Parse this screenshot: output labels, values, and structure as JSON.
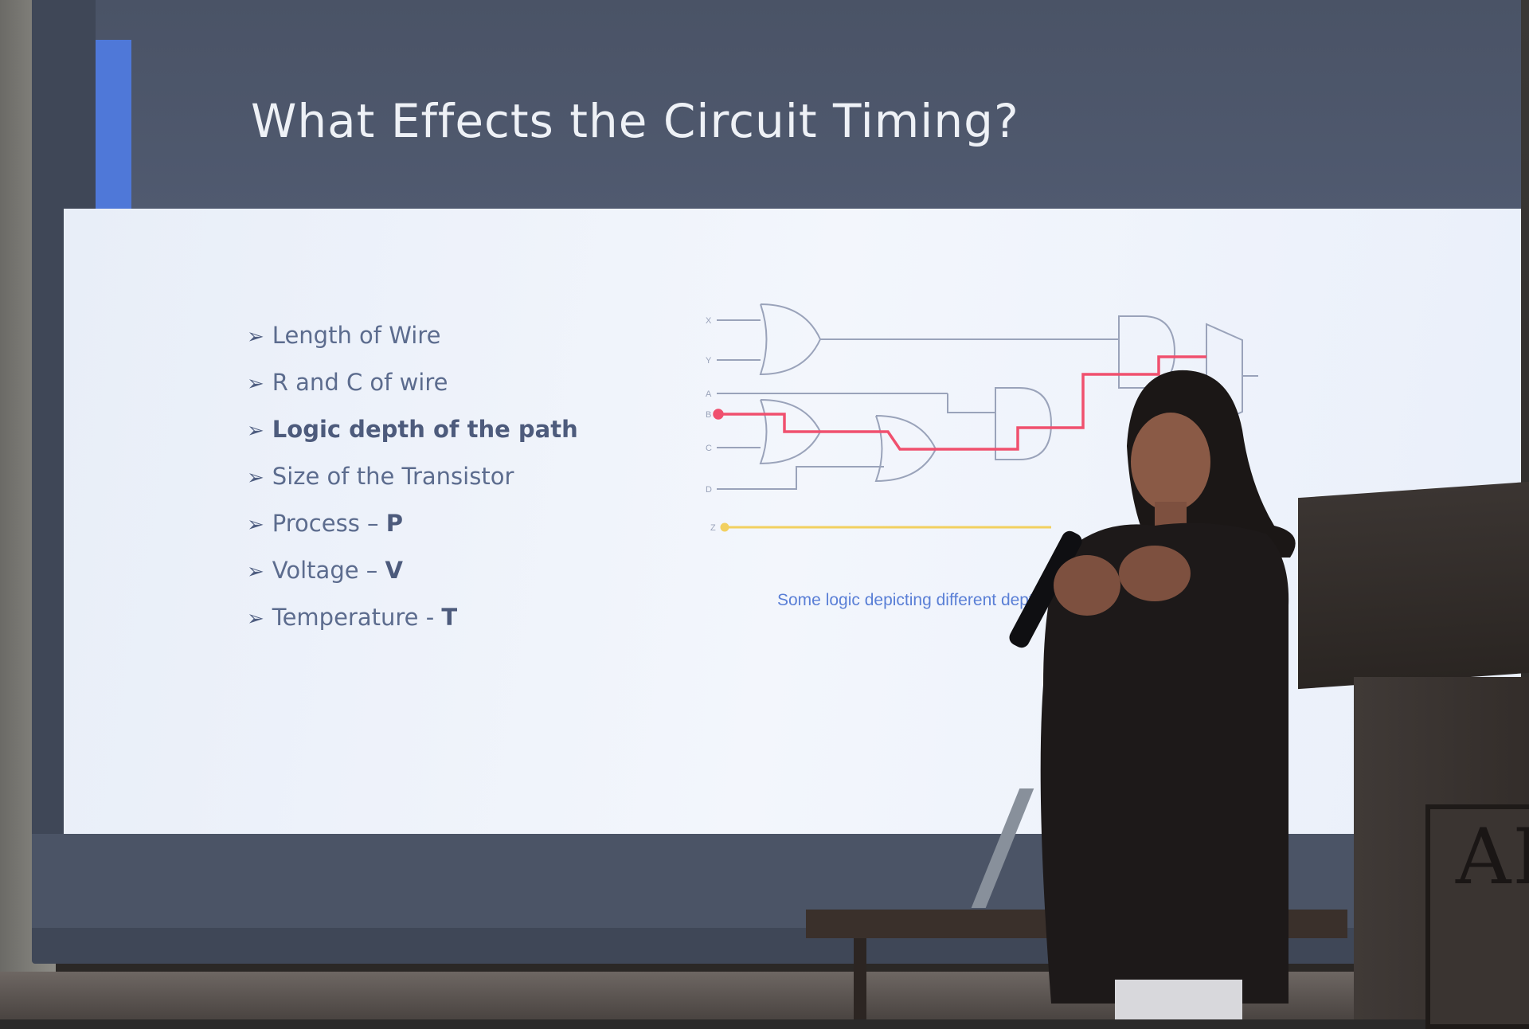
{
  "slide": {
    "title": "What Effects the Circuit Timing?",
    "bullet_marker": "➢",
    "bullets": [
      {
        "text": "Length of Wire"
      },
      {
        "text": "R and C of wire"
      },
      {
        "text": "Logic depth of the path"
      },
      {
        "text": "Size of the Transistor"
      },
      {
        "text": "Process – ",
        "suffix": "P"
      },
      {
        "text": "Voltage – ",
        "suffix": "V"
      },
      {
        "text": "Temperature - ",
        "suffix": "T"
      }
    ],
    "diagram": {
      "input_labels": [
        "X",
        "Y",
        "A",
        "B",
        "C",
        "D",
        "Z"
      ],
      "caption": "Some logic depicting different depth",
      "colors": {
        "wire": "#9aa3ba",
        "critical_path": "#f0506e",
        "z_line": "#f2d060"
      }
    }
  },
  "podium": {
    "crest_text": "AI"
  },
  "colors": {
    "slide_header": "#4a5366",
    "accent_bar": "#4f78d8",
    "slide_body": "#eef2fa",
    "bullet_text": "#5c6c8e"
  }
}
